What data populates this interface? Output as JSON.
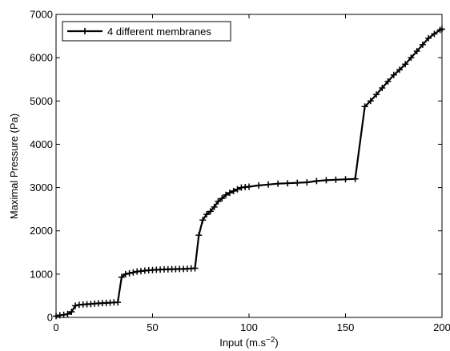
{
  "chart_data": {
    "type": "line",
    "xlabel": "Input (m.s",
    "xlabel_sup": "−2",
    "xlabel_end": ")",
    "ylabel": "Maximal Pressure (Pa)",
    "xlim": [
      0,
      200
    ],
    "ylim": [
      0,
      7000
    ],
    "x_ticks": [
      0,
      50,
      100,
      150,
      200
    ],
    "y_ticks": [
      0,
      1000,
      2000,
      3000,
      4000,
      5000,
      6000,
      7000
    ],
    "grid": false,
    "legend_position": "top-left",
    "colors": {
      "line": "#000000",
      "axis": "#000000",
      "background": "#ffffff"
    },
    "series": [
      {
        "name": "4 different membranes",
        "marker": "plus",
        "x": [
          0,
          2,
          4,
          6,
          8,
          10,
          12,
          14,
          16,
          18,
          20,
          22,
          24,
          26,
          28,
          30,
          32,
          34,
          36,
          38,
          40,
          42,
          44,
          46,
          48,
          50,
          52,
          54,
          56,
          58,
          60,
          62,
          64,
          66,
          68,
          70,
          72,
          74,
          76,
          78,
          80,
          82,
          84,
          86,
          88,
          90,
          92,
          94,
          96,
          98,
          100,
          105,
          110,
          115,
          120,
          125,
          130,
          135,
          140,
          145,
          150,
          155,
          160,
          163,
          166,
          169,
          172,
          175,
          178,
          181,
          184,
          187,
          190,
          193,
          196,
          199,
          200
        ],
        "y": [
          30,
          50,
          60,
          80,
          130,
          270,
          290,
          300,
          305,
          310,
          320,
          325,
          330,
          335,
          340,
          345,
          350,
          930,
          1000,
          1020,
          1040,
          1060,
          1070,
          1080,
          1090,
          1095,
          1100,
          1105,
          1110,
          1110,
          1115,
          1115,
          1120,
          1120,
          1125,
          1130,
          1135,
          1900,
          2250,
          2380,
          2450,
          2550,
          2680,
          2750,
          2830,
          2880,
          2920,
          2960,
          3000,
          3010,
          3020,
          3050,
          3070,
          3090,
          3100,
          3110,
          3120,
          3150,
          3170,
          3180,
          3190,
          3200,
          4870,
          5000,
          5150,
          5300,
          5450,
          5600,
          5720,
          5850,
          6000,
          6150,
          6300,
          6450,
          6550,
          6640,
          6660
        ]
      }
    ]
  }
}
